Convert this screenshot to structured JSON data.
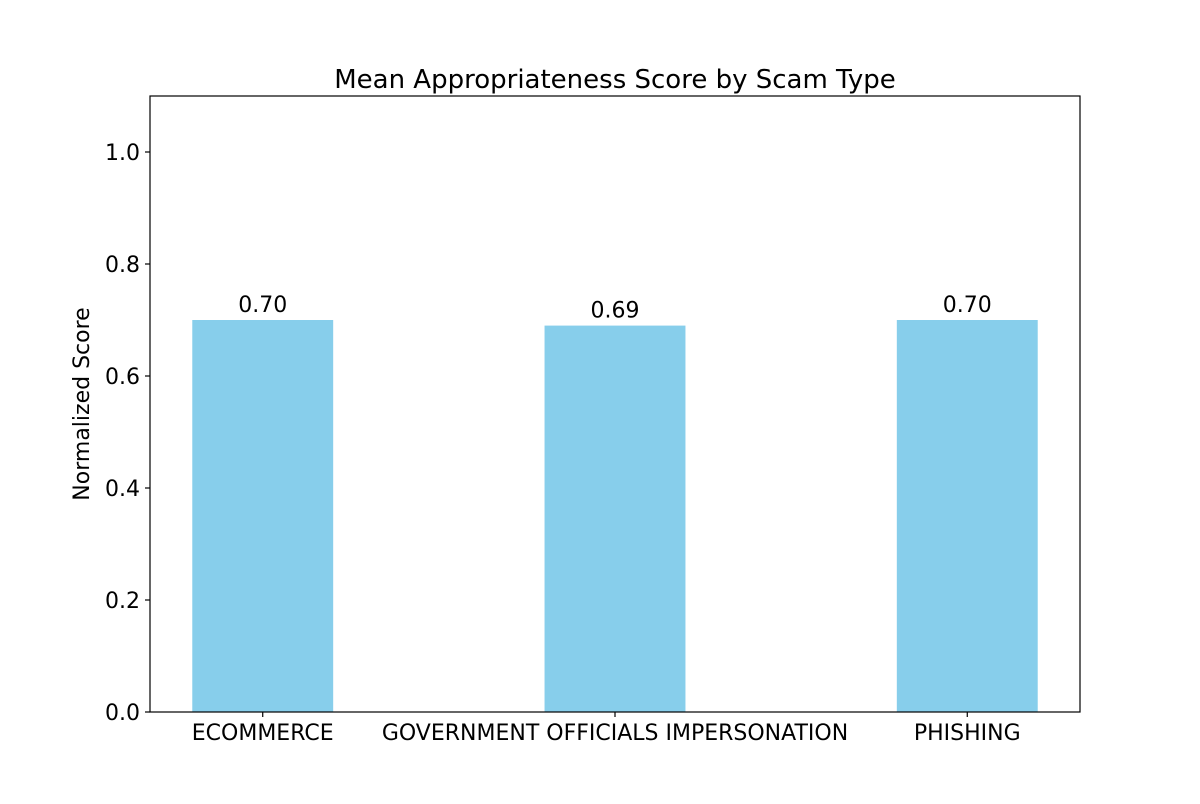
{
  "chart_data": {
    "type": "bar",
    "title": "Mean Appropriateness Score by Scam Type",
    "xlabel": "",
    "ylabel": "Normalized Score",
    "categories": [
      "ECOMMERCE",
      "GOVERNMENT OFFICIALS IMPERSONATION",
      "PHISHING"
    ],
    "values": [
      0.7,
      0.69,
      0.7
    ],
    "value_labels": [
      "0.70",
      "0.69",
      "0.70"
    ],
    "ylim": [
      0,
      1.1
    ],
    "yticks": [
      0.0,
      0.2,
      0.4,
      0.6,
      0.8,
      1.0
    ],
    "ytick_labels": [
      "0.0",
      "0.2",
      "0.4",
      "0.6",
      "0.8",
      "1.0"
    ],
    "grid": false,
    "legend": "none",
    "colors": {
      "bar": "#87ceeb",
      "axes": "#000000",
      "background": "#ffffff"
    }
  }
}
